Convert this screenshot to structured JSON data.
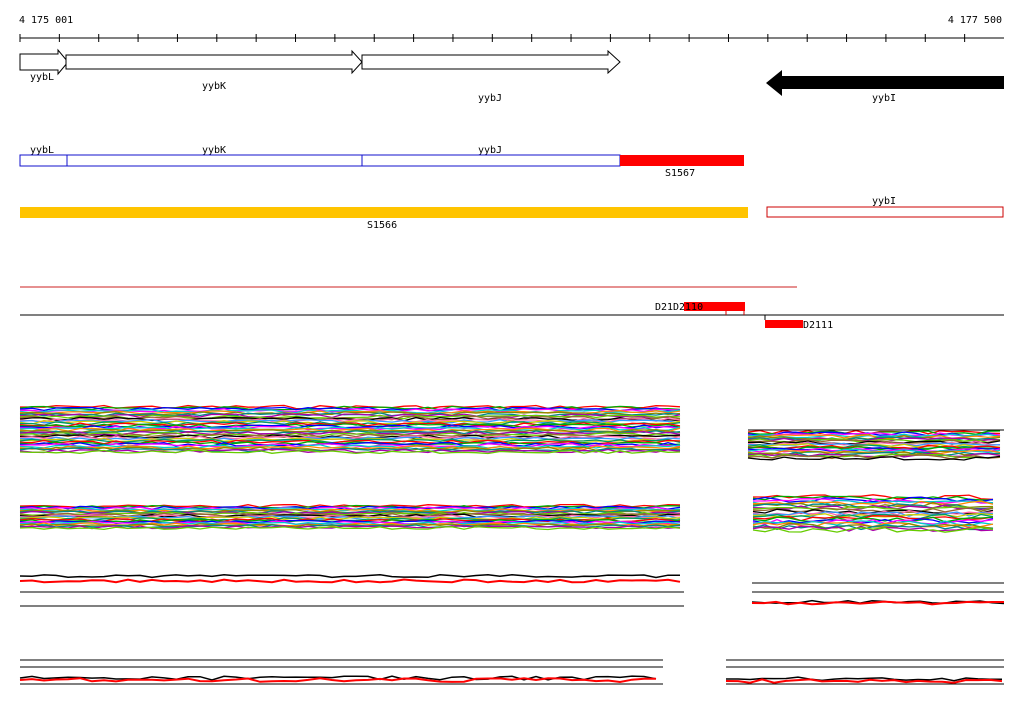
{
  "ruler": {
    "start_label": "4 175 001",
    "end_label": "4 177 500"
  },
  "genes": {
    "yybL": "yybL",
    "yybK": "yybK",
    "yybJ": "yybJ",
    "yybI": "yybI"
  },
  "segments": {
    "s1567": "S1567",
    "s1566": "S1566"
  },
  "probes": {
    "d2110": "D2110",
    "d2111": "D2111",
    "d21d_prefix": "D21"
  },
  "colors": {
    "gene_forward": "#ffffff",
    "gene_reverse": "#000000",
    "operon_box": "#1010cc",
    "segment_red": "#ff0000",
    "segment_yellow": "#ffc400",
    "outline_red": "#cc0000"
  },
  "tracks": {
    "expression_palette": [
      "#ff0000",
      "#00aa00",
      "#0000ff",
      "#ff00ff",
      "#00cccc",
      "#ff8800",
      "#888800",
      "#008888",
      "#aa00aa",
      "#66cc00",
      "#996633",
      "#000000",
      "#ff66aa",
      "#3399ff",
      "#cccc00",
      "#009966"
    ]
  }
}
